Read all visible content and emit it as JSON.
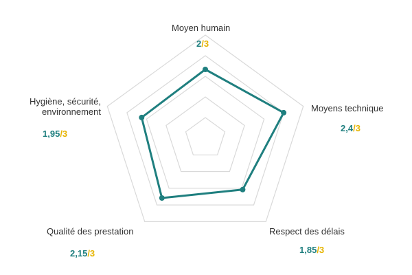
{
  "chart_data": {
    "type": "radar",
    "axes": [
      {
        "label": "Moyen humain",
        "value": 2,
        "value_text": "2",
        "max_text": "/3"
      },
      {
        "label": "Moyens technique",
        "value": 2.4,
        "value_text": "2,4",
        "max_text": "/3"
      },
      {
        "label": "Respect des délais",
        "value": 1.85,
        "value_text": "1,85",
        "max_text": "/3"
      },
      {
        "label": "Qualité des prestation",
        "value": 2.15,
        "value_text": "2,15",
        "max_text": "/3"
      },
      {
        "label": "Hygiène, sécurité,\nenvironnement",
        "value": 1.95,
        "value_text": "1,95",
        "max_text": "/3"
      }
    ],
    "max": 3,
    "rings": 5,
    "grid": true,
    "colors": {
      "series": "#1f7f7f",
      "grid": "#d9d9d9",
      "value_text": "#1f7f7f",
      "max_text": "#e6b400"
    }
  }
}
